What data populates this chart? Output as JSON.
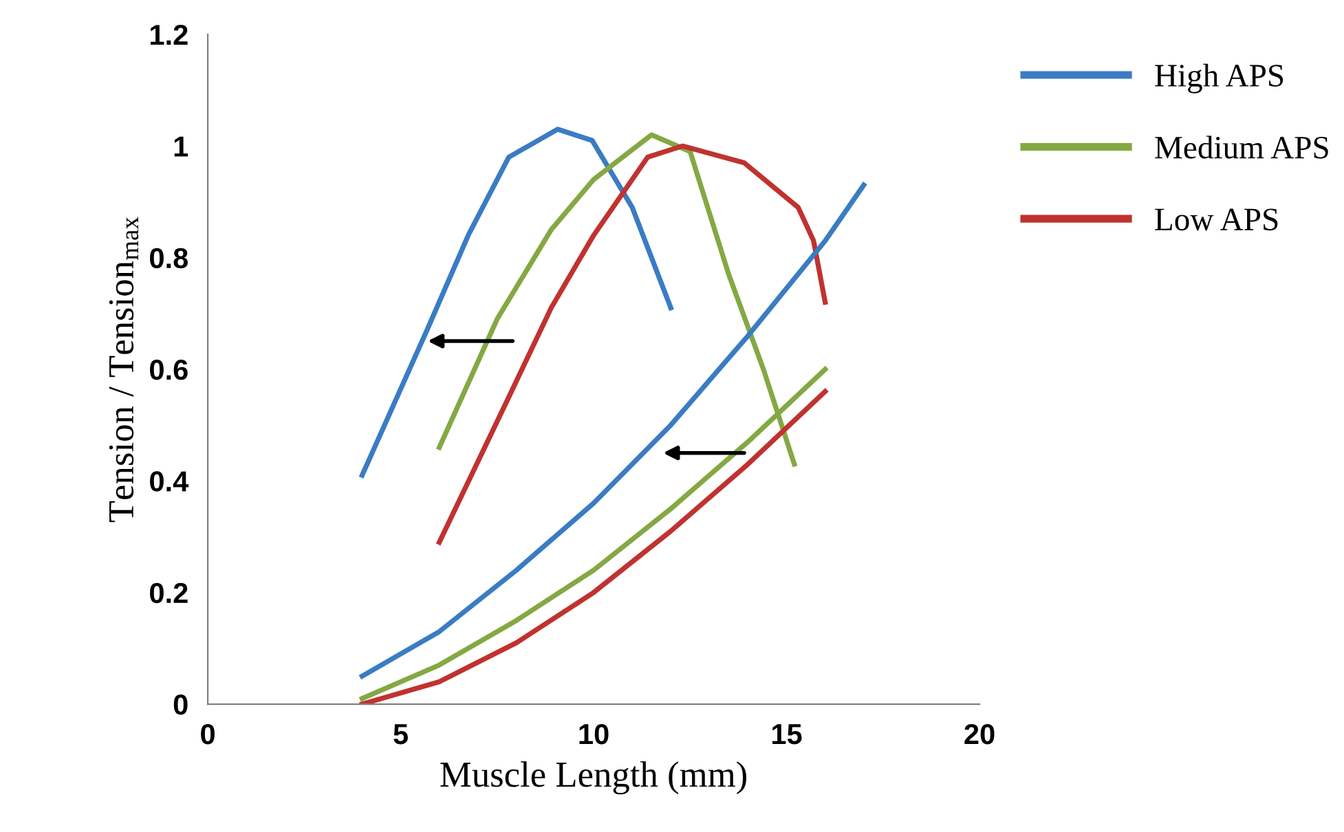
{
  "chart_data": {
    "type": "line",
    "xlabel": "Muscle Length (mm)",
    "ylabel": "Tension / Tension$_{max}$",
    "xlim": [
      0,
      20
    ],
    "xticks": [
      0,
      5,
      10,
      15,
      20
    ],
    "ylim": [
      0,
      1.2
    ],
    "yticks": [
      0,
      0.2,
      0.4,
      0.6,
      0.8,
      1,
      1.2
    ],
    "grid": false,
    "legend": "top right",
    "marker": "none",
    "line_style": "solid",
    "series": [
      {
        "name": "High APS",
        "color": "#3a7cc3",
        "x": [
          4,
          5.68,
          6.75,
          7.8,
          9.07,
          9.96,
          11.0,
          12
        ],
        "values": [
          0.41,
          0.67,
          0.84,
          0.98,
          1.03,
          1.01,
          0.89,
          0.71
        ]
      },
      {
        "name": "Medium APS",
        "color": "#84a843",
        "x": [
          6,
          7.5,
          8.9,
          10,
          11.5,
          12.5,
          13.5,
          14.4,
          15.2
        ],
        "values": [
          0.46,
          0.69,
          0.85,
          0.94,
          1.02,
          0.99,
          0.77,
          0.6,
          0.43
        ]
      },
      {
        "name": "Low APS",
        "color": "#c0322f",
        "x": [
          6,
          7.8,
          8.9,
          10,
          11.4,
          12.3,
          13.9,
          15.3,
          15.7,
          16
        ],
        "values": [
          0.29,
          0.55,
          0.71,
          0.84,
          0.98,
          1.0,
          0.97,
          0.89,
          0.83,
          0.72
        ]
      },
      {
        "color": "#3a7cc3",
        "x": [
          4,
          6,
          8,
          10,
          12,
          14,
          16,
          17
        ],
        "values": [
          0.05,
          0.13,
          0.24,
          0.36,
          0.5,
          0.66,
          0.83,
          0.93
        ]
      },
      {
        "color": "#84a843",
        "x": [
          4,
          6,
          8,
          10,
          12,
          14,
          16
        ],
        "values": [
          0.01,
          0.07,
          0.15,
          0.24,
          0.35,
          0.47,
          0.6
        ]
      },
      {
        "color": "#c0322f",
        "x": [
          4,
          6,
          8,
          10,
          12,
          14,
          16
        ],
        "values": [
          0.0,
          0.04,
          0.11,
          0.2,
          0.31,
          0.43,
          0.56
        ]
      }
    ]
  }
}
